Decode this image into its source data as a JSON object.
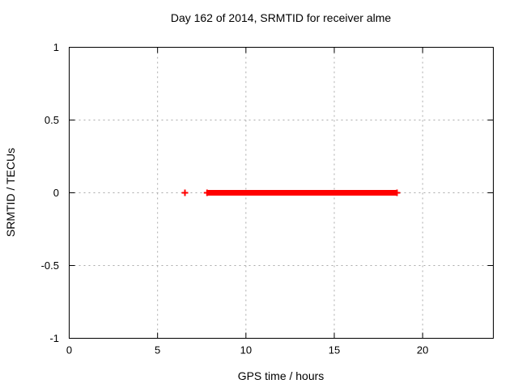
{
  "colors": {
    "data": "#ff0000",
    "grid": "#aaaaaa",
    "axis": "#000000",
    "text": "#000000",
    "background": "#ffffff"
  },
  "chart_data": {
    "type": "scatter",
    "title": "Day 162 of 2014, SRMTID for receiver alme",
    "xlabel": "GPS time / hours",
    "ylabel": "SRMTID / TECUs",
    "xlim": [
      0,
      24
    ],
    "ylim": [
      -1,
      1
    ],
    "xticks": [
      0,
      5,
      10,
      15,
      20
    ],
    "yticks": [
      -1,
      -0.5,
      0,
      0.5,
      1
    ],
    "grid": true,
    "legend_position": "none",
    "marker": "plus",
    "series": [
      {
        "name": "SRMTID",
        "color": "#ff0000",
        "isolated_points": [
          {
            "x": 6.55,
            "y": 0
          }
        ],
        "dense_segments": [
          {
            "x_start": 7.8,
            "x_end": 18.55,
            "y": 0
          }
        ]
      }
    ]
  }
}
